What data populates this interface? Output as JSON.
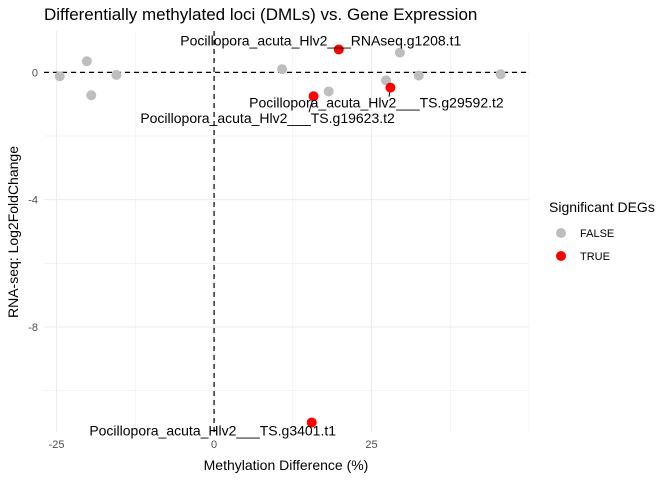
{
  "chart_data": {
    "type": "scatter",
    "title": "Differentially methylated loci (DMLs) vs. Gene Expression",
    "xlabel": "Methylation Difference (%)",
    "ylabel": "RNA-seq: Log2FoldChange",
    "xlim": [
      -27,
      50
    ],
    "ylim": [
      -11.3,
      1.3
    ],
    "x_ticks": [
      -25,
      0,
      25
    ],
    "y_ticks": [
      0,
      -4,
      -8
    ],
    "grid": true,
    "reference_lines": {
      "x": 0,
      "y": 0,
      "style": "dashed"
    },
    "legend": {
      "title": "Significant DEGs",
      "position": "right",
      "entries": [
        {
          "label": "FALSE",
          "color": "#bebebe"
        },
        {
          "label": "TRUE",
          "color": "#ff0000"
        }
      ]
    },
    "series": [
      {
        "name": "FALSE",
        "color": "#bebebe",
        "points": [
          {
            "x": -24.5,
            "y": -0.12
          },
          {
            "x": -20.2,
            "y": 0.35
          },
          {
            "x": -19.5,
            "y": -0.72
          },
          {
            "x": -15.5,
            "y": -0.08
          },
          {
            "x": 10.8,
            "y": 0.1
          },
          {
            "x": 18.2,
            "y": -0.6
          },
          {
            "x": 27.3,
            "y": -0.25
          },
          {
            "x": 29.5,
            "y": 0.62
          },
          {
            "x": 32.5,
            "y": -0.1
          },
          {
            "x": 45.5,
            "y": -0.06
          }
        ]
      },
      {
        "name": "TRUE",
        "color": "#ff0000",
        "points": [
          {
            "x": 15.8,
            "y": -0.75,
            "label": "Pocillopora_acuta_Hlv2___TS.g19623.t2"
          },
          {
            "x": 19.8,
            "y": 0.72,
            "label": "Pocillopora_acuta_Hlv2___RNAseq.g1208.t1"
          },
          {
            "x": 28.0,
            "y": -0.48,
            "label": "Pocillopora_acuta_Hlv2___TS.g29592.t2"
          },
          {
            "x": 15.5,
            "y": -11.0,
            "label": "Pocillopora_acuta_Hlv2___TS.g3401.t1"
          }
        ]
      }
    ]
  }
}
